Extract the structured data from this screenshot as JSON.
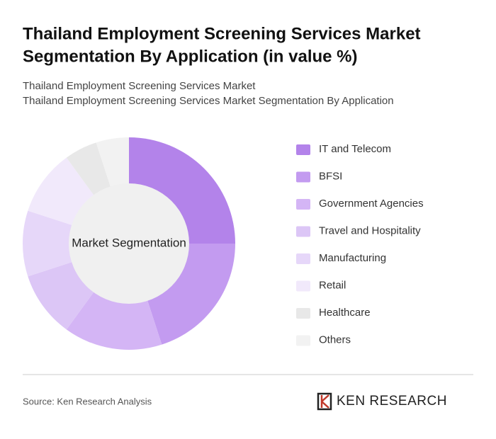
{
  "chart_data": {
    "type": "pie",
    "title": [
      "Thailand Employment Screening Services Market",
      "Segmentation By Application (in value %)"
    ],
    "subtitle": [
      "Thailand Employment Screening Services Market",
      "Thailand Employment Screening Services Market Segmentation By Application"
    ],
    "center_label": "Market Segmentation",
    "categories": [
      "IT and Telecom",
      "BFSI",
      "Government Agencies",
      "Travel and Hospitality",
      "Manufacturing",
      "Retail",
      "Healthcare",
      "Others"
    ],
    "values": [
      25,
      20,
      15,
      10,
      10,
      10,
      5,
      5
    ],
    "colors": [
      "#b383ea",
      "#c39bf0",
      "#d4b5f5",
      "#dcc6f6",
      "#e6d7f9",
      "#f1e9fb",
      "#e8e8e8",
      "#f2f2f2"
    ],
    "source": "Source: Ken Research Analysis",
    "logo": "KEN RESEARCH"
  }
}
